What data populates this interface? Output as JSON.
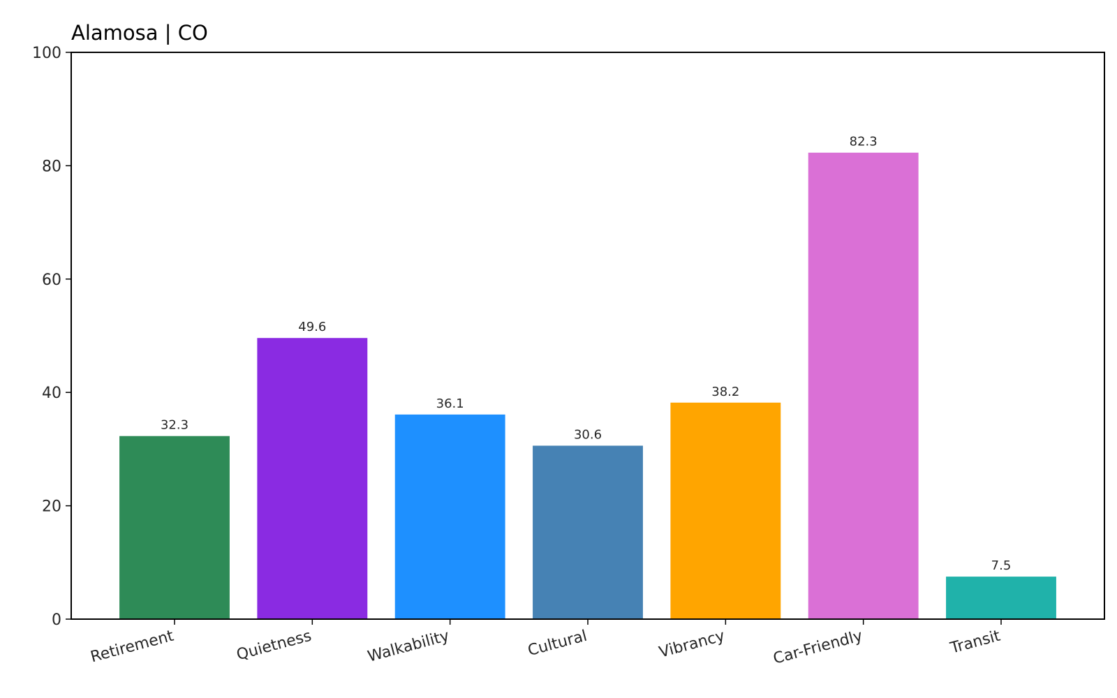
{
  "chart_data": {
    "type": "bar",
    "title": "Alamosa | CO",
    "xlabel": "",
    "ylabel": "",
    "ylim": [
      0,
      100
    ],
    "yticks": [
      0,
      20,
      40,
      60,
      80,
      100
    ],
    "grid": false,
    "categories": [
      "Retirement",
      "Quietness",
      "Walkability",
      "Cultural",
      "Vibrancy",
      "Car-Friendly",
      "Transit"
    ],
    "values": [
      32.3,
      49.6,
      36.1,
      30.6,
      38.2,
      82.3,
      7.5
    ],
    "value_labels": [
      "32.3",
      "49.6",
      "36.1",
      "30.6",
      "38.2",
      "82.3",
      "7.5"
    ],
    "colors": [
      "#2e8b57",
      "#8a2be2",
      "#1e90ff",
      "#4682b4",
      "#ffa500",
      "#da70d6",
      "#20b2aa"
    ]
  }
}
